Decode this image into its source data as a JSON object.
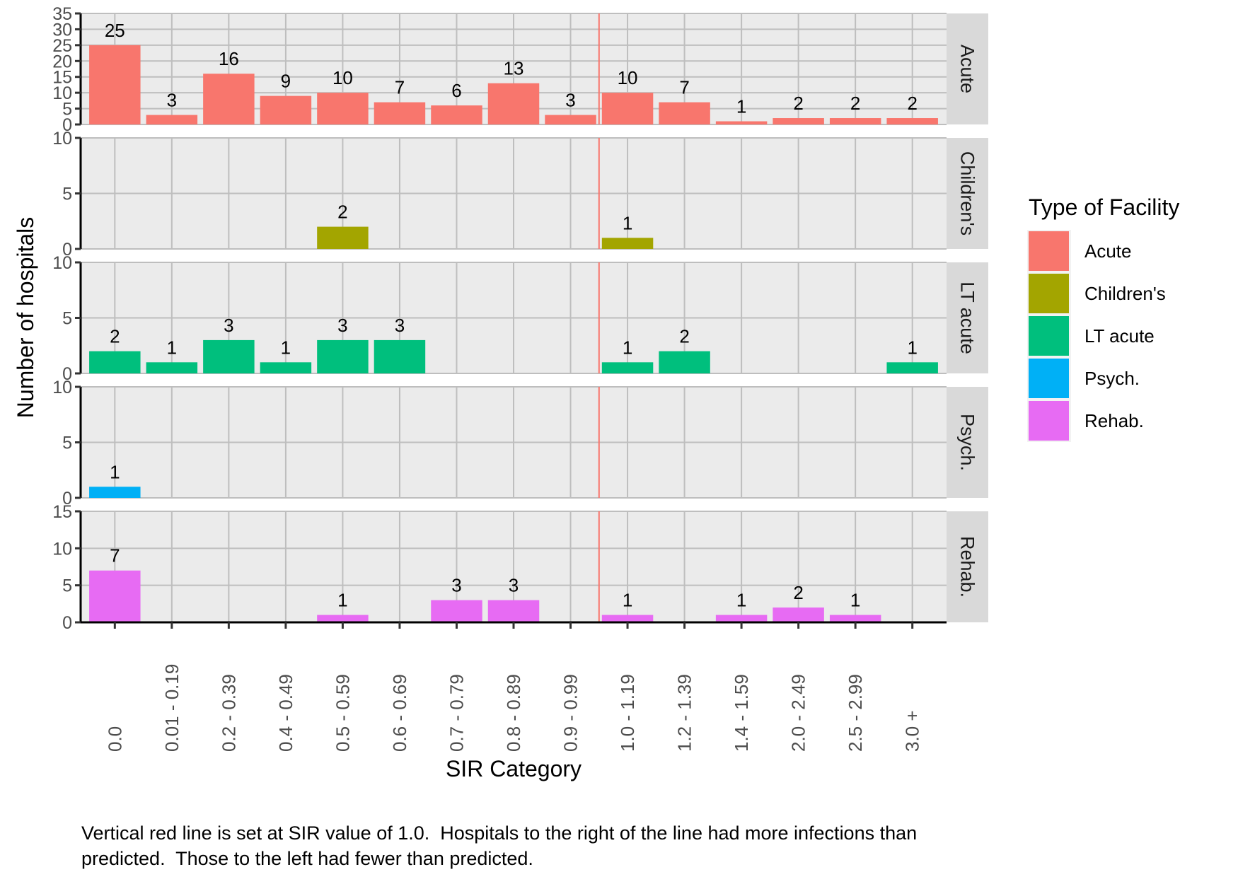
{
  "chart_data": {
    "type": "bar",
    "title": "",
    "xlabel": "SIR Category",
    "ylabel": "Number of hospitals",
    "categories": [
      "0.0",
      "0.01 - 0.19",
      "0.2 - 0.39",
      "0.4 - 0.49",
      "0.5 - 0.59",
      "0.6 - 0.69",
      "0.7 - 0.79",
      "0.8 - 0.89",
      "0.9 - 0.99",
      "1.0 - 1.19",
      "1.2 - 1.39",
      "1.4 - 1.59",
      "2.0 - 2.49",
      "2.5 - 2.99",
      "3.0 +"
    ],
    "facets": [
      {
        "name": "Acute",
        "color": "#F8766D",
        "ylim": [
          0,
          35
        ],
        "yticks": [
          0,
          5,
          10,
          15,
          20,
          25,
          30,
          35
        ],
        "values": [
          25,
          3,
          16,
          9,
          10,
          7,
          6,
          13,
          3,
          10,
          7,
          1,
          2,
          2,
          2
        ]
      },
      {
        "name": "Children's",
        "color": "#A3A500",
        "ylim": [
          0,
          10
        ],
        "yticks": [
          0,
          5,
          10
        ],
        "values": [
          null,
          null,
          null,
          null,
          2,
          null,
          null,
          null,
          null,
          1,
          null,
          null,
          null,
          null,
          null
        ]
      },
      {
        "name": "LT acute",
        "color": "#00BF7D",
        "ylim": [
          0,
          10
        ],
        "yticks": [
          0,
          5,
          10
        ],
        "values": [
          2,
          1,
          3,
          1,
          3,
          3,
          null,
          null,
          null,
          1,
          2,
          null,
          null,
          null,
          1
        ]
      },
      {
        "name": "Psych.",
        "color": "#00B0F6",
        "ylim": [
          0,
          10
        ],
        "yticks": [
          0,
          5,
          10
        ],
        "values": [
          1,
          null,
          null,
          null,
          null,
          null,
          null,
          null,
          null,
          null,
          null,
          null,
          null,
          null,
          null
        ]
      },
      {
        "name": "Rehab.",
        "color": "#E76BF3",
        "ylim": [
          0,
          15
        ],
        "yticks": [
          0,
          5,
          10,
          15
        ],
        "values": [
          7,
          null,
          null,
          null,
          1,
          null,
          3,
          3,
          null,
          1,
          null,
          1,
          2,
          1,
          null
        ]
      }
    ],
    "reference_line": {
      "label": "SIR = 1.0",
      "position_between": [
        "0.9 - 0.99",
        "1.0 - 1.19"
      ],
      "color": "#F8766D"
    },
    "legend": {
      "title": "Type of Facility",
      "position": "right",
      "items": [
        {
          "label": "Acute",
          "color": "#F8766D"
        },
        {
          "label": "Children's",
          "color": "#A3A500"
        },
        {
          "label": "LT acute",
          "color": "#00BF7D"
        },
        {
          "label": "Psych.",
          "color": "#00B0F6"
        },
        {
          "label": "Rehab.",
          "color": "#E76BF3"
        }
      ]
    },
    "grid": true
  },
  "caption": "Vertical red line is set at SIR value of 1.0.  Hospitals to the right of the line had more infections than\npredicted.  Those to the left had fewer than predicted."
}
